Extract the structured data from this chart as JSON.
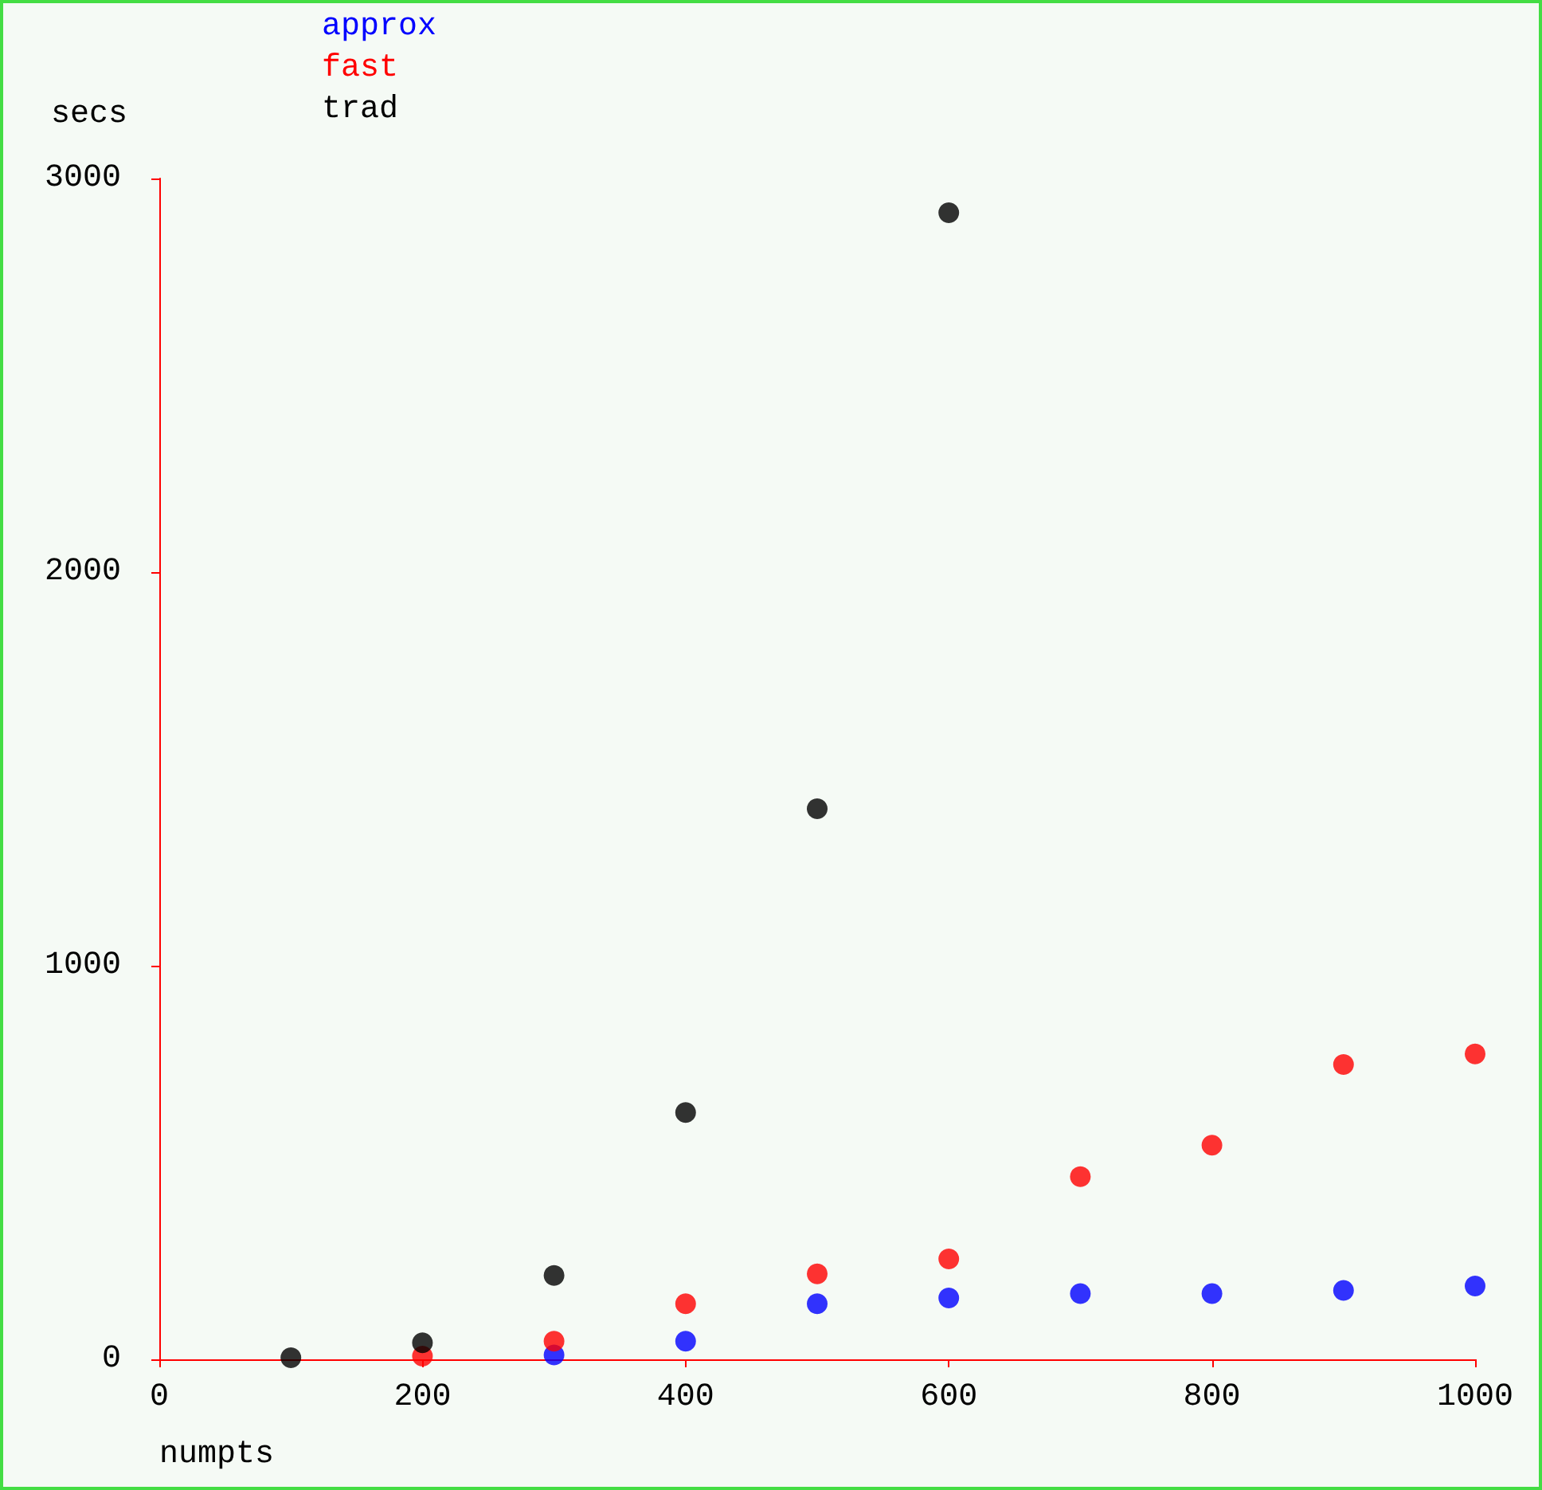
{
  "chart_data": {
    "type": "scatter",
    "xlabel": "numpts",
    "ylabel": "secs",
    "xlim": [
      0,
      1000
    ],
    "xticks": [
      0,
      200,
      400,
      600,
      800,
      1000
    ],
    "ylim": [
      0,
      3000
    ],
    "yticks": [
      0,
      1000,
      2000,
      3000
    ],
    "grid": false,
    "legend": "top left",
    "marker": "circle",
    "series": [
      {
        "name": "approx",
        "color": "#0000ff",
        "x": [
          300,
          400,
          500,
          600,
          700,
          800,
          900,
          1000
        ],
        "values": [
          11,
          46,
          141,
          156,
          167,
          167,
          175,
          186
        ]
      },
      {
        "name": "fast",
        "color": "#ff0000",
        "x": [
          200,
          300,
          400,
          500,
          600,
          700,
          800,
          900,
          1000
        ],
        "values": [
          8,
          46,
          141,
          217,
          255,
          464,
          544,
          749,
          776
        ]
      },
      {
        "name": "trad",
        "color": "#000000",
        "x": [
          100,
          200,
          300,
          400,
          500,
          600
        ],
        "values": [
          4,
          42,
          213,
          627,
          1399,
          2913
        ]
      }
    ]
  }
}
